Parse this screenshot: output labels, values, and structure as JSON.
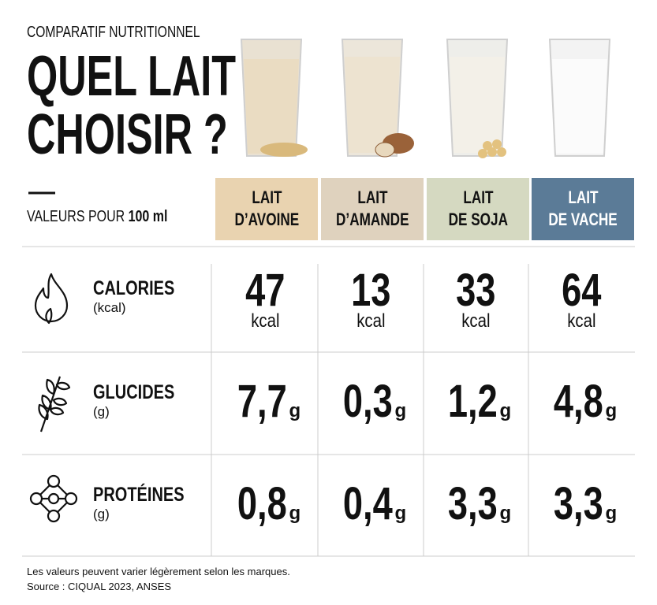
{
  "header": {
    "kicker": "COMPARATIF NUTRITIONNEL",
    "title_lines": [
      "QUEL LAIT",
      "CHOISIR ?"
    ],
    "basis_prefix": "VALEURS POUR",
    "basis_amount": "100 ml"
  },
  "columns": [
    {
      "lines": [
        "LAIT",
        "D’AVOINE"
      ]
    },
    {
      "lines": [
        "LAIT",
        "D’AMANDE"
      ]
    },
    {
      "lines": [
        "LAIT",
        "DE SOJA"
      ]
    },
    {
      "lines": [
        "LAIT",
        "DE VACHE"
      ]
    }
  ],
  "rows": [
    {
      "label": "CALORIES",
      "unit": "(kcal)",
      "cells": [
        {
          "value": "47",
          "unit": "kcal"
        },
        {
          "value": "13",
          "unit": "kcal"
        },
        {
          "value": "33",
          "unit": "kcal"
        },
        {
          "value": "64",
          "unit": "kcal"
        }
      ]
    },
    {
      "label": "GLUCIDES",
      "unit": "(g)",
      "cells": [
        {
          "value": "7,7",
          "unit": "g"
        },
        {
          "value": "0,3",
          "unit": "g"
        },
        {
          "value": "1,2",
          "unit": "g"
        },
        {
          "value": "4,8",
          "unit": "g"
        }
      ]
    },
    {
      "label": "PROTÉINES",
      "unit": "(g)",
      "cells": [
        {
          "value": "0,8",
          "unit": "g"
        },
        {
          "value": "0,4",
          "unit": "g"
        },
        {
          "value": "3,3",
          "unit": "g"
        },
        {
          "value": "3,3",
          "unit": "g"
        }
      ]
    }
  ],
  "footer": {
    "note": "Les valeurs peuvent varier légèrement selon les marques.",
    "source": "Source : CIQUAL 2023, ANSES"
  }
}
